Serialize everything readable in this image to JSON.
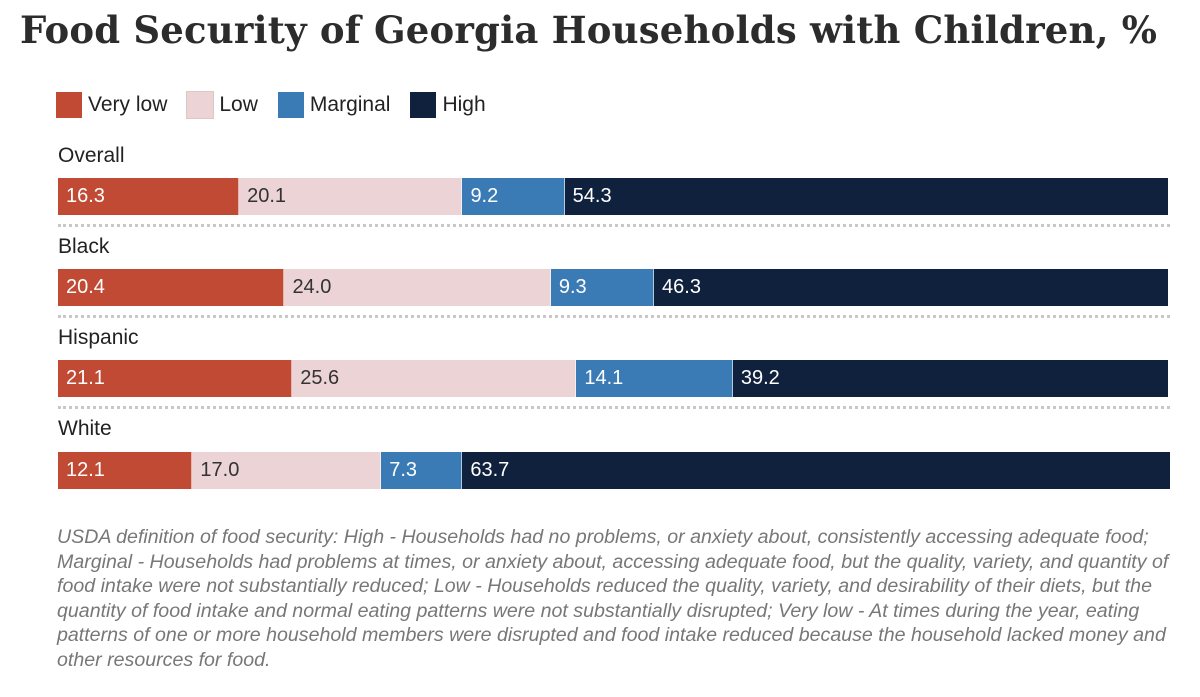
{
  "chart_data": {
    "type": "bar",
    "orientation": "horizontal",
    "stacked": true,
    "title": "Food Security of Georgia Households with Children, %",
    "legend": [
      {
        "name": "Very low",
        "color": "#c04a34"
      },
      {
        "name": "Low",
        "color": "#ebd3d6"
      },
      {
        "name": "Marginal",
        "color": "#3a7bb5"
      },
      {
        "name": "High",
        "color": "#10213e"
      }
    ],
    "categories": [
      "Overall",
      "Black",
      "Hispanic",
      "White"
    ],
    "series": [
      {
        "name": "Very low",
        "values": [
          16.3,
          20.4,
          21.1,
          12.1
        ]
      },
      {
        "name": "Low",
        "values": [
          20.1,
          24.0,
          25.6,
          17.0
        ]
      },
      {
        "name": "Marginal",
        "values": [
          9.2,
          9.3,
          14.1,
          7.3
        ]
      },
      {
        "name": "High",
        "values": [
          54.3,
          46.3,
          39.2,
          63.7
        ]
      }
    ],
    "value_labels": [
      [
        "16.3",
        "20.1",
        "9.2",
        "54.3"
      ],
      [
        "20.4",
        "24.0",
        "9.3",
        "46.3"
      ],
      [
        "21.1",
        "25.6",
        "14.1",
        "39.2"
      ],
      [
        "12.1",
        "17.0",
        "7.3",
        "63.7"
      ]
    ],
    "label_colors": [
      "#ffffff",
      "#333333",
      "#ffffff",
      "#ffffff"
    ],
    "xlim": [
      0,
      100
    ]
  },
  "note": "USDA definition of food security: High - Households had no problems, or anxiety about, consistently accessing adequate food; Marginal - Households had problems at times, or anxiety about, accessing adequate food, but the quality, variety, and quantity of food intake were not substantially reduced; Low - Households reduced the quality, variety, and desirability of their diets, but the quantity of food intake and normal eating patterns were not substantially disrupted; Very low - At times during the year, eating patterns of one or more household members were disrupted and food intake reduced because the household lacked money and other resources for food."
}
